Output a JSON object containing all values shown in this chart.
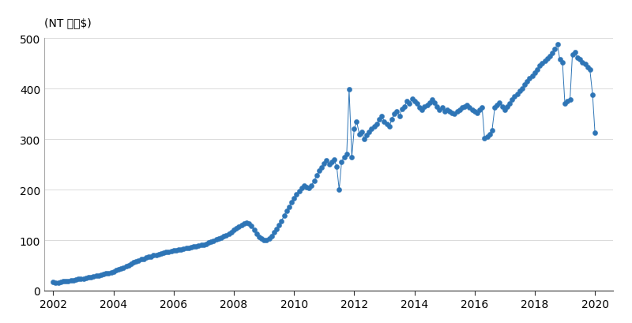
{
  "ylabel": "(NT 十億$)",
  "line_color": "#2e75b6",
  "marker_color": "#2e75b6",
  "marker_size": 4.5,
  "line_width": 0.7,
  "ylim": [
    0,
    500
  ],
  "yticks": [
    0,
    100,
    200,
    300,
    400,
    500
  ],
  "xlim_start": 2001.7,
  "xlim_end": 2020.6,
  "xticks": [
    2002,
    2004,
    2006,
    2008,
    2010,
    2012,
    2014,
    2016,
    2018,
    2020
  ],
  "background_color": "#ffffff",
  "data": [
    [
      2002.0,
      17
    ],
    [
      2002.08,
      16
    ],
    [
      2002.17,
      16
    ],
    [
      2002.25,
      17
    ],
    [
      2002.33,
      18
    ],
    [
      2002.42,
      19
    ],
    [
      2002.5,
      19
    ],
    [
      2002.58,
      21
    ],
    [
      2002.67,
      21
    ],
    [
      2002.75,
      22
    ],
    [
      2002.83,
      23
    ],
    [
      2002.92,
      24
    ],
    [
      2003.0,
      24
    ],
    [
      2003.08,
      25
    ],
    [
      2003.17,
      26
    ],
    [
      2003.25,
      27
    ],
    [
      2003.33,
      28
    ],
    [
      2003.42,
      29
    ],
    [
      2003.5,
      30
    ],
    [
      2003.58,
      31
    ],
    [
      2003.67,
      33
    ],
    [
      2003.75,
      34
    ],
    [
      2003.83,
      35
    ],
    [
      2003.92,
      36
    ],
    [
      2004.0,
      38
    ],
    [
      2004.08,
      40
    ],
    [
      2004.17,
      42
    ],
    [
      2004.25,
      44
    ],
    [
      2004.33,
      46
    ],
    [
      2004.42,
      48
    ],
    [
      2004.5,
      50
    ],
    [
      2004.58,
      53
    ],
    [
      2004.67,
      56
    ],
    [
      2004.75,
      58
    ],
    [
      2004.83,
      60
    ],
    [
      2004.92,
      62
    ],
    [
      2005.0,
      63
    ],
    [
      2005.08,
      65
    ],
    [
      2005.17,
      67
    ],
    [
      2005.25,
      68
    ],
    [
      2005.33,
      70
    ],
    [
      2005.42,
      71
    ],
    [
      2005.5,
      72
    ],
    [
      2005.58,
      73
    ],
    [
      2005.67,
      75
    ],
    [
      2005.75,
      76
    ],
    [
      2005.83,
      77
    ],
    [
      2005.92,
      78
    ],
    [
      2006.0,
      79
    ],
    [
      2006.08,
      80
    ],
    [
      2006.17,
      81
    ],
    [
      2006.25,
      82
    ],
    [
      2006.33,
      83
    ],
    [
      2006.42,
      84
    ],
    [
      2006.5,
      85
    ],
    [
      2006.58,
      86
    ],
    [
      2006.67,
      87
    ],
    [
      2006.75,
      88
    ],
    [
      2006.83,
      89
    ],
    [
      2006.92,
      90
    ],
    [
      2007.0,
      91
    ],
    [
      2007.08,
      93
    ],
    [
      2007.17,
      95
    ],
    [
      2007.25,
      97
    ],
    [
      2007.33,
      99
    ],
    [
      2007.42,
      101
    ],
    [
      2007.5,
      103
    ],
    [
      2007.58,
      105
    ],
    [
      2007.67,
      108
    ],
    [
      2007.75,
      110
    ],
    [
      2007.83,
      113
    ],
    [
      2007.92,
      116
    ],
    [
      2008.0,
      120
    ],
    [
      2008.08,
      123
    ],
    [
      2008.17,
      126
    ],
    [
      2008.25,
      130
    ],
    [
      2008.33,
      133
    ],
    [
      2008.42,
      135
    ],
    [
      2008.5,
      133
    ],
    [
      2008.58,
      128
    ],
    [
      2008.67,
      120
    ],
    [
      2008.75,
      112
    ],
    [
      2008.83,
      106
    ],
    [
      2008.92,
      103
    ],
    [
      2009.0,
      100
    ],
    [
      2009.08,
      100
    ],
    [
      2009.17,
      103
    ],
    [
      2009.25,
      108
    ],
    [
      2009.33,
      115
    ],
    [
      2009.42,
      122
    ],
    [
      2009.5,
      130
    ],
    [
      2009.58,
      138
    ],
    [
      2009.67,
      148
    ],
    [
      2009.75,
      158
    ],
    [
      2009.83,
      166
    ],
    [
      2009.92,
      175
    ],
    [
      2010.0,
      183
    ],
    [
      2010.08,
      190
    ],
    [
      2010.17,
      197
    ],
    [
      2010.25,
      203
    ],
    [
      2010.33,
      208
    ],
    [
      2010.42,
      205
    ],
    [
      2010.5,
      203
    ],
    [
      2010.58,
      208
    ],
    [
      2010.67,
      218
    ],
    [
      2010.75,
      228
    ],
    [
      2010.83,
      237
    ],
    [
      2010.92,
      244
    ],
    [
      2011.0,
      251
    ],
    [
      2011.08,
      258
    ],
    [
      2011.17,
      250
    ],
    [
      2011.25,
      255
    ],
    [
      2011.33,
      260
    ],
    [
      2011.42,
      245
    ],
    [
      2011.5,
      200
    ],
    [
      2011.58,
      255
    ],
    [
      2011.67,
      265
    ],
    [
      2011.75,
      270
    ],
    [
      2011.83,
      398
    ],
    [
      2011.92,
      265
    ],
    [
      2012.0,
      320
    ],
    [
      2012.08,
      335
    ],
    [
      2012.17,
      310
    ],
    [
      2012.25,
      315
    ],
    [
      2012.33,
      300
    ],
    [
      2012.42,
      308
    ],
    [
      2012.5,
      315
    ],
    [
      2012.58,
      320
    ],
    [
      2012.67,
      325
    ],
    [
      2012.75,
      330
    ],
    [
      2012.83,
      340
    ],
    [
      2012.92,
      345
    ],
    [
      2013.0,
      335
    ],
    [
      2013.08,
      330
    ],
    [
      2013.17,
      325
    ],
    [
      2013.25,
      340
    ],
    [
      2013.33,
      350
    ],
    [
      2013.42,
      355
    ],
    [
      2013.5,
      345
    ],
    [
      2013.58,
      360
    ],
    [
      2013.67,
      365
    ],
    [
      2013.75,
      375
    ],
    [
      2013.83,
      370
    ],
    [
      2013.92,
      380
    ],
    [
      2014.0,
      375
    ],
    [
      2014.08,
      370
    ],
    [
      2014.17,
      362
    ],
    [
      2014.25,
      358
    ],
    [
      2014.33,
      365
    ],
    [
      2014.42,
      368
    ],
    [
      2014.5,
      372
    ],
    [
      2014.58,
      378
    ],
    [
      2014.67,
      372
    ],
    [
      2014.75,
      365
    ],
    [
      2014.83,
      358
    ],
    [
      2014.92,
      362
    ],
    [
      2015.0,
      355
    ],
    [
      2015.08,
      358
    ],
    [
      2015.17,
      355
    ],
    [
      2015.25,
      352
    ],
    [
      2015.33,
      350
    ],
    [
      2015.42,
      355
    ],
    [
      2015.5,
      358
    ],
    [
      2015.58,
      362
    ],
    [
      2015.67,
      365
    ],
    [
      2015.75,
      368
    ],
    [
      2015.83,
      362
    ],
    [
      2015.92,
      358
    ],
    [
      2016.0,
      355
    ],
    [
      2016.08,
      352
    ],
    [
      2016.17,
      358
    ],
    [
      2016.25,
      362
    ],
    [
      2016.33,
      302
    ],
    [
      2016.42,
      305
    ],
    [
      2016.5,
      310
    ],
    [
      2016.58,
      318
    ],
    [
      2016.67,
      362
    ],
    [
      2016.75,
      368
    ],
    [
      2016.83,
      372
    ],
    [
      2016.92,
      365
    ],
    [
      2017.0,
      358
    ],
    [
      2017.08,
      365
    ],
    [
      2017.17,
      370
    ],
    [
      2017.25,
      378
    ],
    [
      2017.33,
      385
    ],
    [
      2017.42,
      390
    ],
    [
      2017.5,
      395
    ],
    [
      2017.58,
      400
    ],
    [
      2017.67,
      408
    ],
    [
      2017.75,
      415
    ],
    [
      2017.83,
      420
    ],
    [
      2017.92,
      425
    ],
    [
      2018.0,
      432
    ],
    [
      2018.08,
      438
    ],
    [
      2018.17,
      445
    ],
    [
      2018.25,
      450
    ],
    [
      2018.33,
      455
    ],
    [
      2018.42,
      460
    ],
    [
      2018.5,
      465
    ],
    [
      2018.58,
      470
    ],
    [
      2018.67,
      478
    ],
    [
      2018.75,
      488
    ],
    [
      2018.83,
      458
    ],
    [
      2018.92,
      452
    ],
    [
      2019.0,
      370
    ],
    [
      2019.08,
      375
    ],
    [
      2019.17,
      378
    ],
    [
      2019.25,
      468
    ],
    [
      2019.33,
      472
    ],
    [
      2019.42,
      462
    ],
    [
      2019.5,
      458
    ],
    [
      2019.58,
      452
    ],
    [
      2019.67,
      448
    ],
    [
      2019.75,
      442
    ],
    [
      2019.83,
      438
    ],
    [
      2019.92,
      388
    ],
    [
      2020.0,
      312
    ]
  ]
}
